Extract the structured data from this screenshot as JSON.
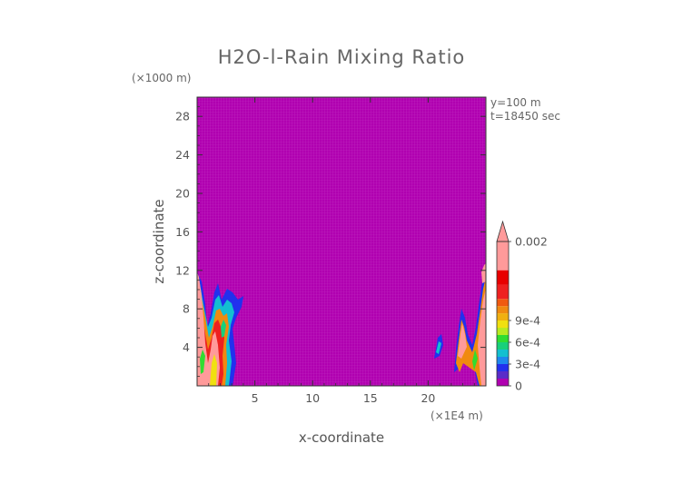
{
  "chart_data": {
    "type": "heatmap",
    "title": "H2O-l-Rain Mixing Ratio",
    "xlabel": "x-coordinate",
    "ylabel": "z-coordinate",
    "x_units": "(×1E4 m)",
    "y_units": "(×1000 m)",
    "xlim": [
      0,
      25
    ],
    "ylim": [
      0,
      30
    ],
    "x_ticks": [
      "5",
      "10",
      "15",
      "20"
    ],
    "y_ticks": [
      "4",
      "8",
      "12",
      "16",
      "20",
      "24",
      "28"
    ],
    "x_tick_values": [
      5,
      10,
      15,
      20
    ],
    "y_tick_values": [
      4,
      8,
      12,
      16,
      20,
      24,
      28
    ],
    "annotations": [
      "y=100 m",
      "t=18450 sec"
    ],
    "background_value": 0,
    "colorbar": {
      "labels": [
        "0.002",
        "9e-4",
        "6e-4",
        "3e-4",
        "0"
      ],
      "label_values": [
        0.002,
        0.0009,
        0.0006,
        0.0003,
        0
      ],
      "colors": [
        "#b000b0",
        "#5a2cc8",
        "#2230ee",
        "#1e88ee",
        "#13c0d0",
        "#18d07a",
        "#30dd30",
        "#b8ea20",
        "#f0e010",
        "#f0b010",
        "#f08a10",
        "#f05a10",
        "#ee2020",
        "#e80000",
        "#ff9a9a"
      ],
      "extend": "max"
    },
    "regions": [
      {
        "x_range": [
          0,
          3.8
        ],
        "z_range": [
          0,
          12.5
        ],
        "max_value": 0.002
      },
      {
        "x_range": [
          20.5,
          25
        ],
        "z_range": [
          0,
          13
        ],
        "max_value": 0.002
      }
    ]
  },
  "colors": {
    "background_field": "#b000b0",
    "frame": "#333333",
    "text": "#555555"
  }
}
